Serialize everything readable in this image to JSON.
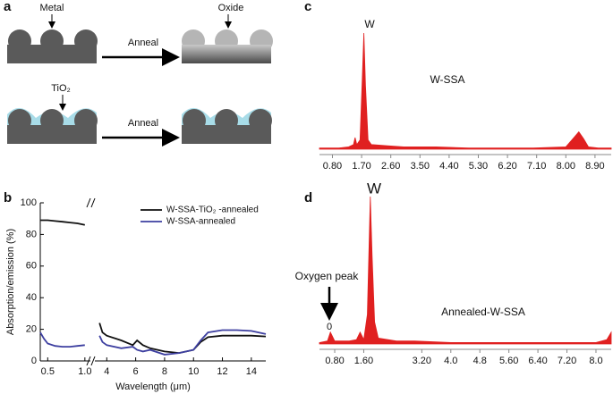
{
  "panels": [
    "a",
    "b",
    "c",
    "d"
  ],
  "diagram": {
    "metal": "Metal",
    "oxide": "Oxide",
    "tio2": "TiO₂",
    "anneal_top": "Anneal",
    "anneal_bottom": "Anneal"
  },
  "chart_data": [
    {
      "type": "line",
      "xlabel": "Wavelength (μm)",
      "ylabel": "Absorption/emission (%)",
      "xlim": [
        0.4,
        15
      ],
      "xbreak": [
        1.05,
        3.3
      ],
      "ylim": [
        0,
        100
      ],
      "xticks": [
        0.5,
        {
          "value": 1,
          "label": "1.0"
        },
        4,
        6,
        8,
        10,
        12,
        14
      ],
      "yticks": [
        0,
        20,
        40,
        60,
        80,
        100
      ],
      "legend": "top",
      "x": [
        0.4,
        0.45,
        0.5,
        0.6,
        0.7,
        0.8,
        0.9,
        1.0,
        3.5,
        3.7,
        4,
        5,
        5.8,
        6.1,
        6.5,
        7,
        8,
        9,
        10,
        10.5,
        11,
        12,
        13,
        14,
        15
      ],
      "series": [
        {
          "name": "W-SSA-TiO₂ -annealed",
          "color": "#111111",
          "values": [
            89,
            89,
            89,
            88.5,
            88,
            87.5,
            87,
            86,
            24,
            18,
            16,
            13,
            10,
            13,
            10,
            8,
            6,
            5,
            7,
            12,
            15,
            16,
            16,
            16,
            15.5
          ]
        },
        {
          "name": "W-SSA-annealed",
          "color": "#3d3fa0",
          "values": [
            18,
            14,
            11,
            9.5,
            9,
            9,
            9.5,
            10,
            16,
            12,
            10,
            8,
            9,
            7,
            6,
            7,
            4,
            5,
            7,
            13,
            18,
            19.5,
            19.5,
            19,
            17
          ]
        }
      ]
    },
    {
      "type": "area",
      "color": "#e02020",
      "xlim": [
        0.4,
        9.4
      ],
      "ylim": [
        0,
        100
      ],
      "xticks": [
        {
          "value": 0.8,
          "label": "0.80"
        },
        {
          "value": 1.7,
          "label": "1.70"
        },
        {
          "value": 2.6,
          "label": "2.60"
        },
        {
          "value": 3.5,
          "label": "3.50"
        },
        {
          "value": 4.4,
          "label": "4.40"
        },
        {
          "value": 5.3,
          "label": "5.30"
        },
        {
          "value": 6.2,
          "label": "6.20"
        },
        {
          "value": 7.1,
          "label": "7.10"
        },
        {
          "value": 8,
          "label": "8.00"
        },
        {
          "value": 8.9,
          "label": "8.90"
        }
      ],
      "annotations": [
        "W",
        "W-SSA"
      ],
      "x": [
        0.4,
        1.0,
        1.3,
        1.45,
        1.5,
        1.55,
        1.65,
        1.72,
        1.77,
        1.82,
        1.9,
        2.0,
        2.5,
        3,
        4,
        5,
        6,
        7,
        8,
        8.25,
        8.4,
        8.55,
        8.7,
        9,
        9.4
      ],
      "values": [
        1,
        1,
        2,
        4,
        10,
        4,
        8,
        60,
        100,
        55,
        8,
        4,
        3,
        2,
        2,
        1,
        1,
        1,
        2,
        10,
        15,
        9,
        2,
        1,
        1
      ]
    },
    {
      "type": "area",
      "color": "#e02020",
      "xlim": [
        0.38,
        8.42
      ],
      "ylim": [
        0,
        100
      ],
      "xticks": [
        {
          "value": 0.8,
          "label": "0.80"
        },
        {
          "value": 1.6,
          "label": "1.60"
        },
        {
          "value": 3.2,
          "label": "3.20"
        },
        {
          "value": 4,
          "label": "4.0"
        },
        4.8,
        {
          "value": 5.6,
          "label": "5.60"
        },
        {
          "value": 6.4,
          "label": "6.40"
        },
        {
          "value": 7.2,
          "label": "7.20"
        },
        {
          "value": 8,
          "label": "8.0"
        }
      ],
      "annotations": [
        "W",
        "Oxygen peak",
        "0",
        "Annealed-W-SSA"
      ],
      "x": [
        0.38,
        0.6,
        0.68,
        0.72,
        0.8,
        1.2,
        1.4,
        1.5,
        1.6,
        1.7,
        1.78,
        1.83,
        1.9,
        2.0,
        2.5,
        3,
        4,
        5,
        6,
        7,
        8,
        8.3,
        8.42
      ],
      "values": [
        1,
        2,
        8,
        6,
        2,
        2,
        3,
        8,
        3,
        20,
        100,
        60,
        15,
        4,
        2,
        2,
        1,
        1,
        1,
        1,
        1,
        3,
        8
      ]
    }
  ]
}
